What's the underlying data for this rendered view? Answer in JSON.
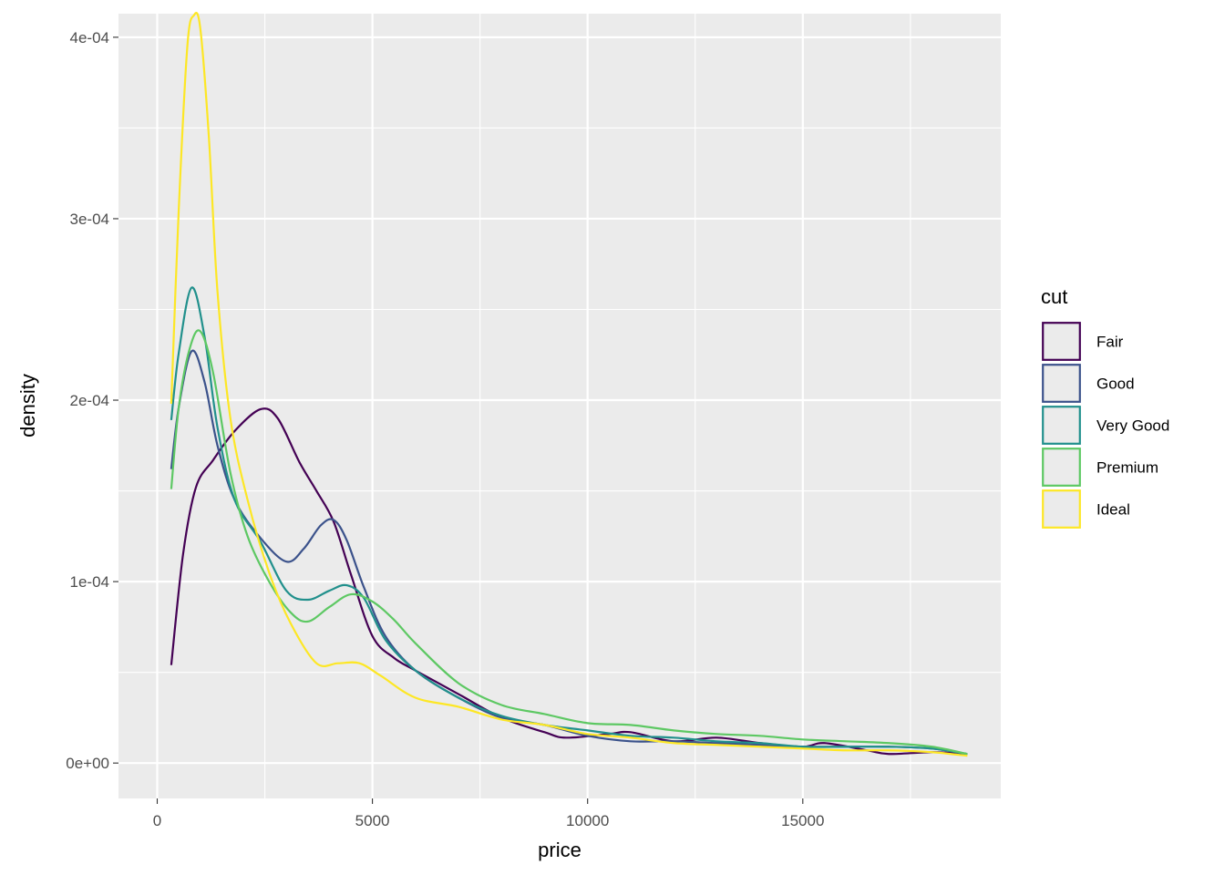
{
  "chart_data": {
    "type": "line",
    "title": "",
    "xlabel": "price",
    "ylabel": "density",
    "xlim": [
      -900,
      19600
    ],
    "ylim": [
      -1.95e-05,
      0.000413
    ],
    "x_ticks": [
      0,
      5000,
      10000,
      15000
    ],
    "x_tick_labels": [
      "0",
      "5000",
      "10000",
      "15000"
    ],
    "y_ticks": [
      0,
      0.0001,
      0.0002,
      0.0003,
      0.0004
    ],
    "y_tick_labels": [
      "0e+00",
      "1e-04",
      "2e-04",
      "3e-04",
      "4e-04"
    ],
    "grid": true,
    "legend": {
      "title": "cut",
      "placement": "right"
    },
    "series": [
      {
        "name": "Fair",
        "color": "#440154",
        "points": [
          [
            326,
            5.4e-05
          ],
          [
            600,
            0.000115
          ],
          [
            900,
            0.000152
          ],
          [
            1300,
            0.000167
          ],
          [
            1800,
            0.000183
          ],
          [
            2400,
            0.000195
          ],
          [
            2800,
            0.00019
          ],
          [
            3300,
            0.000166
          ],
          [
            3700,
            0.00015
          ],
          [
            4100,
            0.000133
          ],
          [
            4500,
            0.000104
          ],
          [
            5000,
            7e-05
          ],
          [
            5500,
            5.8e-05
          ],
          [
            6000,
            5.1e-05
          ],
          [
            7000,
            3.8e-05
          ],
          [
            8000,
            2.5e-05
          ],
          [
            9000,
            1.7e-05
          ],
          [
            9500,
            1.4e-05
          ],
          [
            10500,
            1.6e-05
          ],
          [
            11000,
            1.7e-05
          ],
          [
            12000,
            1.2e-05
          ],
          [
            13000,
            1.4e-05
          ],
          [
            14000,
            1.1e-05
          ],
          [
            15000,
            9e-06
          ],
          [
            15500,
            1.1e-05
          ],
          [
            16500,
            7e-06
          ],
          [
            17000,
            5e-06
          ],
          [
            18000,
            6e-06
          ],
          [
            18823,
            5e-06
          ]
        ]
      },
      {
        "name": "Good",
        "color": "#3B528B",
        "points": [
          [
            326,
            0.000162
          ],
          [
            500,
            0.000196
          ],
          [
            800,
            0.000227
          ],
          [
            1100,
            0.00021
          ],
          [
            1400,
            0.000175
          ],
          [
            1800,
            0.000145
          ],
          [
            2400,
            0.000124
          ],
          [
            3000,
            0.000111
          ],
          [
            3400,
            0.000118
          ],
          [
            3800,
            0.000131
          ],
          [
            4100,
            0.000134
          ],
          [
            4400,
            0.000123
          ],
          [
            4800,
            9.7e-05
          ],
          [
            5300,
            7e-05
          ],
          [
            6000,
            5.1e-05
          ],
          [
            7000,
            3.6e-05
          ],
          [
            8000,
            2.5e-05
          ],
          [
            9000,
            2.1e-05
          ],
          [
            10000,
            1.5e-05
          ],
          [
            11000,
            1.2e-05
          ],
          [
            12000,
            1.2e-05
          ],
          [
            13000,
            1.1e-05
          ],
          [
            14000,
            1e-05
          ],
          [
            15000,
            9e-06
          ],
          [
            16000,
            9e-06
          ],
          [
            17000,
            9e-06
          ],
          [
            18000,
            8e-06
          ],
          [
            18823,
            5e-06
          ]
        ]
      },
      {
        "name": "Very Good",
        "color": "#21908C",
        "points": [
          [
            326,
            0.000189
          ],
          [
            500,
            0.000226
          ],
          [
            800,
            0.000262
          ],
          [
            1100,
            0.000235
          ],
          [
            1400,
            0.000185
          ],
          [
            1800,
            0.000145
          ],
          [
            2400,
            0.000122
          ],
          [
            3000,
            9.5e-05
          ],
          [
            3500,
            9e-05
          ],
          [
            4000,
            9.5e-05
          ],
          [
            4400,
            9.8e-05
          ],
          [
            4800,
            9.1e-05
          ],
          [
            5300,
            6.8e-05
          ],
          [
            6000,
            5.1e-05
          ],
          [
            7000,
            3.6e-05
          ],
          [
            8000,
            2.6e-05
          ],
          [
            9000,
            2.1e-05
          ],
          [
            10000,
            1.8e-05
          ],
          [
            11000,
            1.5e-05
          ],
          [
            12000,
            1.4e-05
          ],
          [
            13000,
            1.2e-05
          ],
          [
            14000,
            1.1e-05
          ],
          [
            15000,
            9e-06
          ],
          [
            16000,
            9e-06
          ],
          [
            17000,
            9e-06
          ],
          [
            18000,
            8e-06
          ],
          [
            18823,
            5e-06
          ]
        ]
      },
      {
        "name": "Premium",
        "color": "#5DC863",
        "points": [
          [
            326,
            0.000151
          ],
          [
            500,
            0.000196
          ],
          [
            750,
            0.000228
          ],
          [
            1000,
            0.000238
          ],
          [
            1300,
            0.000215
          ],
          [
            1700,
            0.00016
          ],
          [
            2100,
            0.000125
          ],
          [
            2600,
            0.0001
          ],
          [
            3100,
            8.3e-05
          ],
          [
            3500,
            7.8e-05
          ],
          [
            4000,
            8.6e-05
          ],
          [
            4500,
            9.3e-05
          ],
          [
            5000,
            8.9e-05
          ],
          [
            5500,
            7.9e-05
          ],
          [
            6000,
            6.6e-05
          ],
          [
            7000,
            4.4e-05
          ],
          [
            8000,
            3.2e-05
          ],
          [
            9000,
            2.7e-05
          ],
          [
            10000,
            2.2e-05
          ],
          [
            11000,
            2.1e-05
          ],
          [
            12000,
            1.8e-05
          ],
          [
            13000,
            1.6e-05
          ],
          [
            14000,
            1.5e-05
          ],
          [
            15000,
            1.3e-05
          ],
          [
            16000,
            1.2e-05
          ],
          [
            17000,
            1.1e-05
          ],
          [
            18000,
            9e-06
          ],
          [
            18823,
            5e-06
          ]
        ]
      },
      {
        "name": "Ideal",
        "color": "#FDE725",
        "points": [
          [
            326,
            0.000198
          ],
          [
            500,
            0.000305
          ],
          [
            700,
            0.000395
          ],
          [
            850,
            0.000412
          ],
          [
            1000,
            0.000405
          ],
          [
            1200,
            0.000345
          ],
          [
            1400,
            0.00026
          ],
          [
            1700,
            0.00019
          ],
          [
            2100,
            0.000145
          ],
          [
            2600,
            0.000105
          ],
          [
            3100,
            7.7e-05
          ],
          [
            3700,
            5.5e-05
          ],
          [
            4200,
            5.5e-05
          ],
          [
            4700,
            5.5e-05
          ],
          [
            5200,
            4.8e-05
          ],
          [
            6000,
            3.6e-05
          ],
          [
            7000,
            3.1e-05
          ],
          [
            8000,
            2.4e-05
          ],
          [
            9000,
            2.1e-05
          ],
          [
            10000,
            1.6e-05
          ],
          [
            11000,
            1.4e-05
          ],
          [
            12000,
            1.1e-05
          ],
          [
            13000,
            1e-05
          ],
          [
            14000,
            9e-06
          ],
          [
            15000,
            8e-06
          ],
          [
            16000,
            7e-06
          ],
          [
            17000,
            7e-06
          ],
          [
            18000,
            6e-06
          ],
          [
            18823,
            4e-06
          ]
        ]
      }
    ]
  }
}
